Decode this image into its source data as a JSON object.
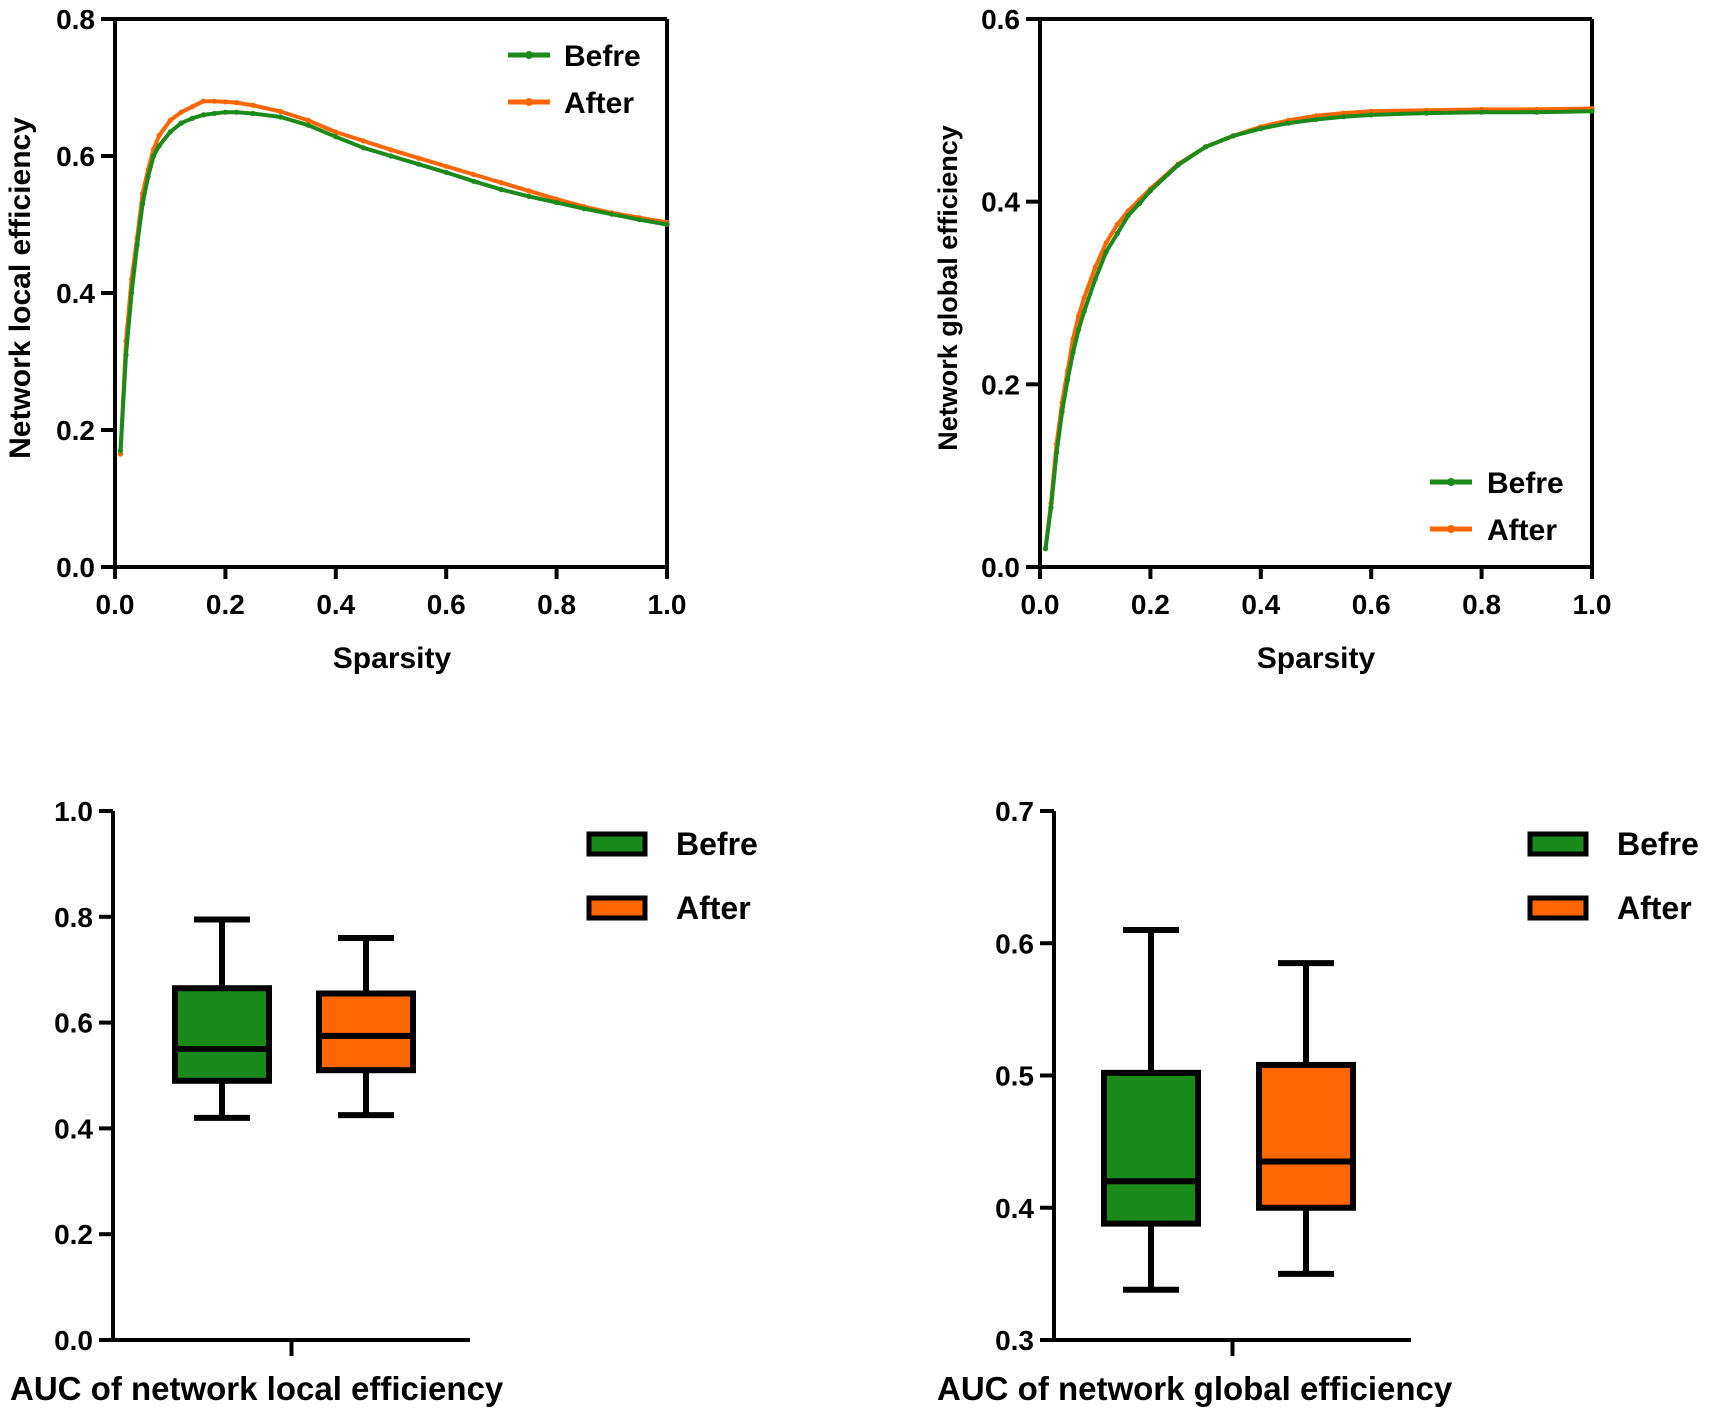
{
  "colors": {
    "before": "#1a8a1a",
    "after": "#ff6600",
    "axis": "#000000"
  },
  "chart_data": [
    {
      "id": "local",
      "type": "line",
      "title": "",
      "xlabel": "Sparsity",
      "ylabel": "Network local efficiency",
      "xlim": [
        0,
        1.0
      ],
      "ylim": [
        0,
        0.8
      ],
      "xticks": [
        "0.0",
        "0.2",
        "0.4",
        "0.6",
        "0.8",
        "1.0"
      ],
      "yticks": [
        "0.0",
        "0.2",
        "0.4",
        "0.6",
        "0.8"
      ],
      "legend_position": "top-right",
      "x": [
        0.01,
        0.02,
        0.03,
        0.04,
        0.05,
        0.06,
        0.07,
        0.08,
        0.1,
        0.12,
        0.14,
        0.16,
        0.18,
        0.2,
        0.22,
        0.25,
        0.3,
        0.35,
        0.4,
        0.45,
        0.5,
        0.55,
        0.6,
        0.65,
        0.7,
        0.75,
        0.8,
        0.85,
        0.9,
        0.95,
        1.0
      ],
      "series": [
        {
          "name": "Befre",
          "values": [
            0.17,
            0.31,
            0.4,
            0.47,
            0.53,
            0.57,
            0.6,
            0.615,
            0.635,
            0.648,
            0.655,
            0.66,
            0.662,
            0.664,
            0.664,
            0.662,
            0.657,
            0.645,
            0.628,
            0.612,
            0.6,
            0.588,
            0.576,
            0.563,
            0.551,
            0.541,
            0.532,
            0.523,
            0.515,
            0.507,
            0.5
          ]
        },
        {
          "name": "After",
          "values": [
            0.165,
            0.33,
            0.42,
            0.48,
            0.545,
            0.58,
            0.61,
            0.63,
            0.652,
            0.664,
            0.672,
            0.68,
            0.68,
            0.679,
            0.678,
            0.674,
            0.665,
            0.652,
            0.635,
            0.622,
            0.609,
            0.597,
            0.585,
            0.573,
            0.561,
            0.549,
            0.537,
            0.526,
            0.517,
            0.51,
            0.503
          ]
        }
      ]
    },
    {
      "id": "global",
      "type": "line",
      "title": "",
      "xlabel": "Sparsity",
      "ylabel": "Network global efficiency",
      "xlim": [
        0,
        1.0
      ],
      "ylim": [
        0,
        0.6
      ],
      "xticks": [
        "0.0",
        "0.2",
        "0.4",
        "0.6",
        "0.8",
        "1.0"
      ],
      "yticks": [
        "0.0",
        "0.2",
        "0.4",
        "0.6"
      ],
      "legend_position": "bottom-right",
      "x": [
        0.01,
        0.02,
        0.03,
        0.04,
        0.05,
        0.06,
        0.07,
        0.08,
        0.1,
        0.12,
        0.14,
        0.16,
        0.18,
        0.2,
        0.25,
        0.3,
        0.35,
        0.4,
        0.45,
        0.5,
        0.55,
        0.6,
        0.7,
        0.8,
        0.9,
        1.0
      ],
      "series": [
        {
          "name": "Befre",
          "values": [
            0.02,
            0.065,
            0.125,
            0.17,
            0.205,
            0.235,
            0.26,
            0.28,
            0.315,
            0.345,
            0.365,
            0.385,
            0.398,
            0.412,
            0.44,
            0.46,
            0.472,
            0.48,
            0.486,
            0.49,
            0.493,
            0.495,
            0.497,
            0.498,
            0.498,
            0.499
          ]
        },
        {
          "name": "After",
          "values": [
            0.02,
            0.07,
            0.135,
            0.18,
            0.215,
            0.25,
            0.275,
            0.295,
            0.328,
            0.355,
            0.375,
            0.39,
            0.402,
            0.414,
            0.441,
            0.46,
            0.472,
            0.482,
            0.489,
            0.494,
            0.497,
            0.499,
            0.5,
            0.501,
            0.501,
            0.502
          ]
        }
      ]
    },
    {
      "id": "auc-local",
      "type": "box",
      "title": "",
      "xlabel": "AUC of network local efficiency",
      "ylabel": "",
      "ylim": [
        0,
        1.0
      ],
      "yticks": [
        "0.0",
        "0.2",
        "0.4",
        "0.6",
        "0.8",
        "1.0"
      ],
      "legend_position": "top-right",
      "groups": [
        {
          "name": "Befre",
          "min": 0.42,
          "q1": 0.49,
          "median": 0.55,
          "q3": 0.665,
          "max": 0.795
        },
        {
          "name": "After",
          "min": 0.425,
          "q1": 0.51,
          "median": 0.575,
          "q3": 0.655,
          "max": 0.76
        }
      ]
    },
    {
      "id": "auc-global",
      "type": "box",
      "title": "",
      "xlabel": "AUC of network global efficiency",
      "ylabel": "",
      "ylim": [
        0.3,
        0.7
      ],
      "yticks": [
        "0.3",
        "0.4",
        "0.5",
        "0.6",
        "0.7"
      ],
      "legend_position": "top-right",
      "groups": [
        {
          "name": "Befre",
          "min": 0.338,
          "q1": 0.388,
          "median": 0.42,
          "q3": 0.502,
          "max": 0.61
        },
        {
          "name": "After",
          "min": 0.35,
          "q1": 0.4,
          "median": 0.435,
          "q3": 0.508,
          "max": 0.585
        }
      ]
    }
  ]
}
